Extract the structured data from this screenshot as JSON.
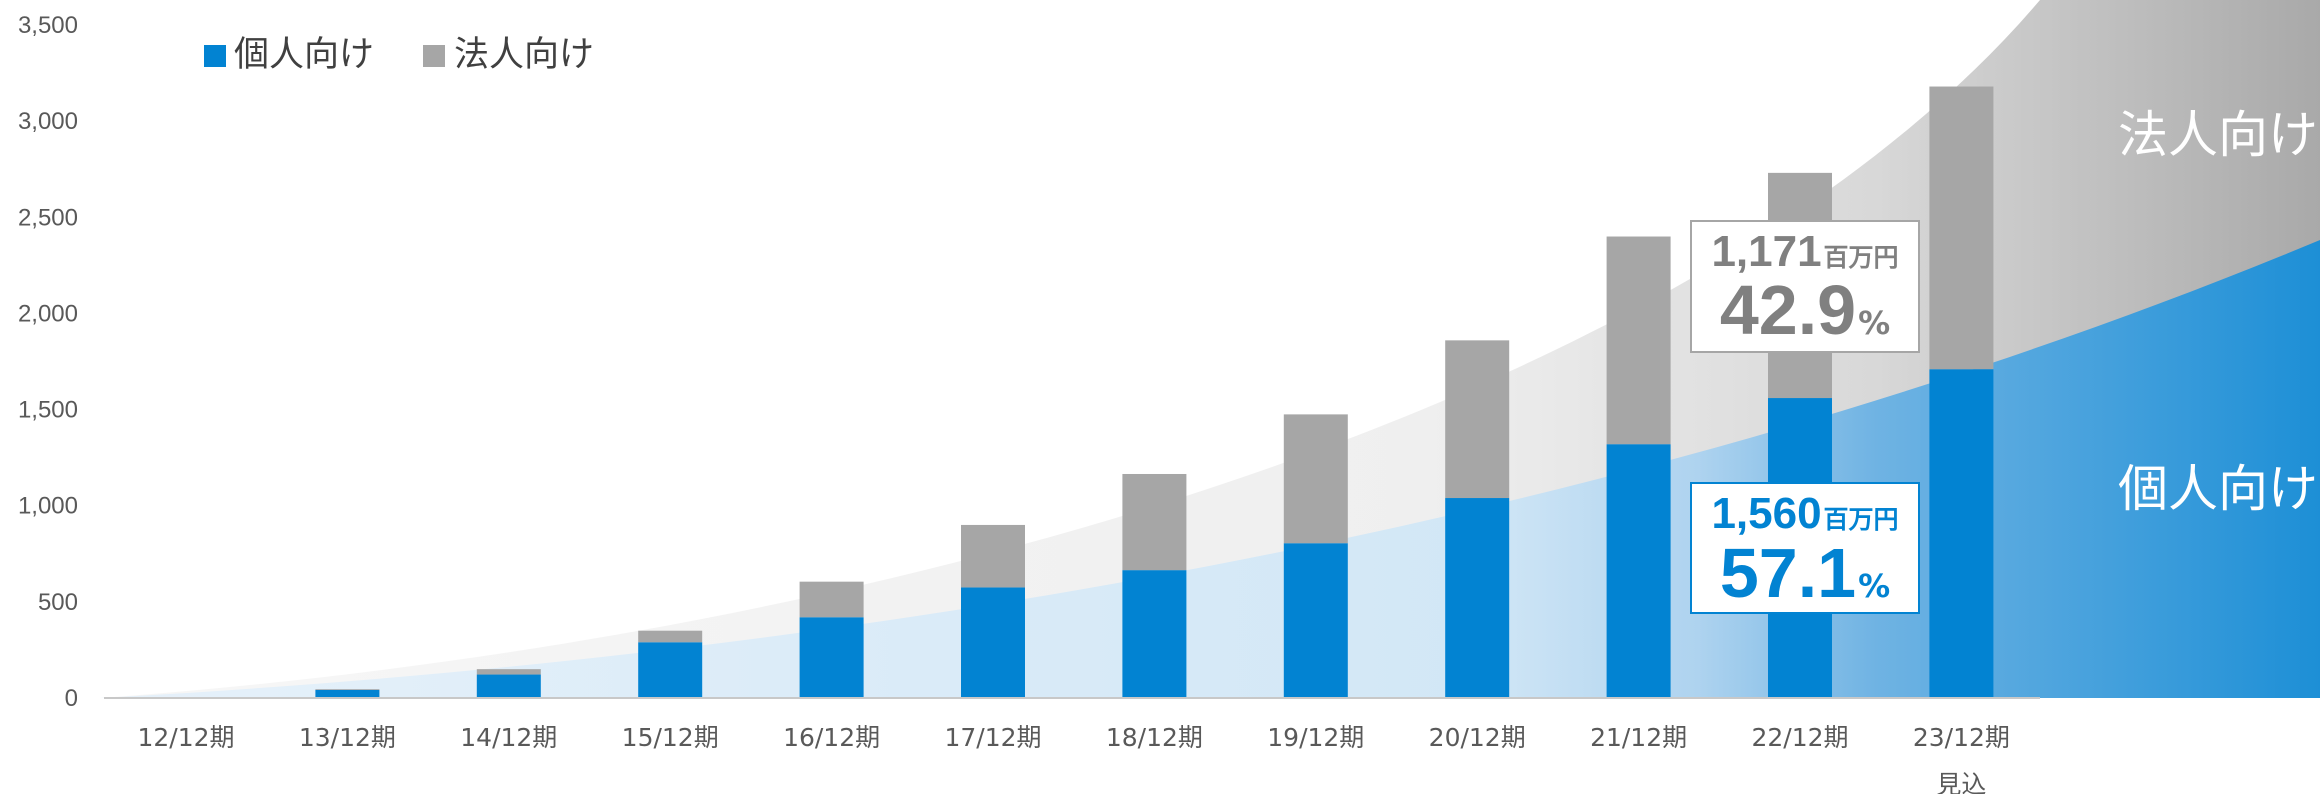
{
  "chart_data": {
    "type": "bar",
    "stacked": true,
    "categories": [
      "12/12期",
      "13/12期",
      "14/12期",
      "15/12期",
      "16/12期",
      "17/12期",
      "18/12期",
      "19/12期",
      "20/12期",
      "21/12期",
      "22/12期",
      "23/12期"
    ],
    "category_sublabels": [
      "",
      "",
      "",
      "",
      "",
      "",
      "",
      "",
      "",
      "",
      "",
      "見込"
    ],
    "series": [
      {
        "name": "個人向け",
        "color": "#0283d2",
        "values": [
          3,
          42,
          122,
          290,
          420,
          575,
          665,
          805,
          1040,
          1320,
          1560,
          1710
        ]
      },
      {
        "name": "法人向け",
        "color": "#a6a6a6",
        "values": [
          2,
          4,
          28,
          60,
          185,
          325,
          500,
          670,
          820,
          1080,
          1171,
          1470
        ]
      }
    ],
    "ylim": [
      0,
      3500
    ],
    "yticks": [
      "0",
      "500",
      "1,000",
      "1,500",
      "2,000",
      "2,500",
      "3,000",
      "3,500"
    ],
    "ytick_values": [
      0,
      500,
      1000,
      1500,
      2000,
      2500,
      3000,
      3500
    ],
    "grid": false,
    "legend_position": "top-left",
    "band_labels": {
      "corporate": "法人向け",
      "individual": "個人向け"
    },
    "callouts": {
      "corporate": {
        "amount": "1,171",
        "unit": "百万円",
        "percent": "42.9",
        "pct_sign": "%",
        "color": "#808080"
      },
      "individual": {
        "amount": "1,560",
        "unit": "百万円",
        "percent": "57.1",
        "pct_sign": "%",
        "color": "#0283d2"
      }
    }
  }
}
